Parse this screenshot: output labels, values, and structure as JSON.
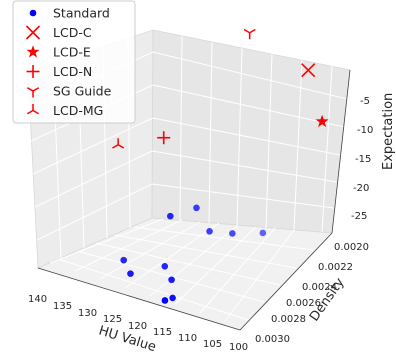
{
  "chart_data": {
    "type": "scatter",
    "dimensions": "3d",
    "title": "",
    "xlabel": "HU Value",
    "ylabel": "Density",
    "zlabel": "Expectation",
    "xlim": [
      100,
      140
    ],
    "ylim": [
      0.0019,
      0.003
    ],
    "zlim": [
      -27,
      -1
    ],
    "x_ticks": [
      "140",
      "135",
      "130",
      "125",
      "120",
      "115",
      "110",
      "105",
      "100"
    ],
    "y_ticks": [
      "0.0020",
      "0.0022",
      "0.0024",
      "0.0026",
      "0.0028",
      "0.0030"
    ],
    "z_ticks": [
      "-5",
      "-10",
      "-15",
      "-20",
      "-25"
    ],
    "grid": true,
    "legend_position": "top-left",
    "series": [
      {
        "name": "Standard",
        "marker": "circle",
        "color": "#0000ff",
        "points": [
          {
            "x": 120,
            "y": 0.0027,
            "z": -18
          },
          {
            "x": 118,
            "y": 0.0025,
            "z": -19
          },
          {
            "x": 115,
            "y": 0.0025,
            "z": -22
          },
          {
            "x": 112,
            "y": 0.0024,
            "z": -23
          },
          {
            "x": 109,
            "y": 0.0022,
            "z": -25
          },
          {
            "x": 128,
            "y": 0.0027,
            "z": -27
          },
          {
            "x": 125,
            "y": 0.0028,
            "z": -27
          },
          {
            "x": 120,
            "y": 0.0027,
            "z": -26
          },
          {
            "x": 117,
            "y": 0.0028,
            "z": -26
          },
          {
            "x": 115,
            "y": 0.003,
            "z": -26
          },
          {
            "x": 115,
            "y": 0.0029,
            "z": -27
          }
        ]
      },
      {
        "name": "LCD-C",
        "marker": "x",
        "color": "#ff0000",
        "points": [
          {
            "x": 108,
            "y": 0.0019,
            "z": -3
          }
        ]
      },
      {
        "name": "LCD-E",
        "marker": "star",
        "color": "#ff0000",
        "points": [
          {
            "x": 100,
            "y": 0.0022,
            "z": -5
          }
        ]
      },
      {
        "name": "LCD-N",
        "marker": "plus",
        "color": "#ff0000",
        "points": [
          {
            "x": 130,
            "y": 0.0022,
            "z": -15
          }
        ]
      },
      {
        "name": "SG Guide",
        "marker": "tri_down",
        "color": "#ff0000",
        "points": [
          {
            "x": 120,
            "y": 0.0019,
            "z": 0
          }
        ]
      },
      {
        "name": "LCD-MG",
        "marker": "tri_up",
        "color": "#ff0000",
        "points": [
          {
            "x": 140,
            "y": 0.0021,
            "z": -20
          }
        ]
      }
    ]
  }
}
